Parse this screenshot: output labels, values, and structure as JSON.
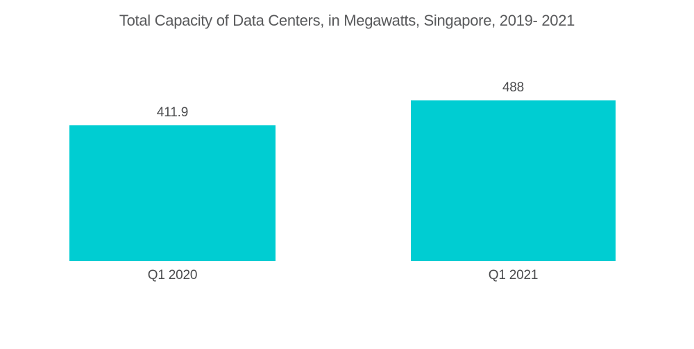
{
  "chart_data": {
    "type": "bar",
    "title": "Total Capacity of Data Centers, in Megawatts, Singapore, 2019- 2021",
    "categories": [
      "Q1 2020",
      "Q1 2021"
    ],
    "values": [
      411.9,
      488
    ],
    "value_labels": [
      "411.9",
      "488"
    ],
    "xlabel": "",
    "ylabel": "",
    "ylim": [
      0,
      520
    ],
    "grid": false,
    "legend": false,
    "axis_lines": false,
    "bar_color": "#00CDD2",
    "title_color": "#58595B",
    "label_color": "#4A4B4D",
    "background_color": "#FFFFFF"
  }
}
